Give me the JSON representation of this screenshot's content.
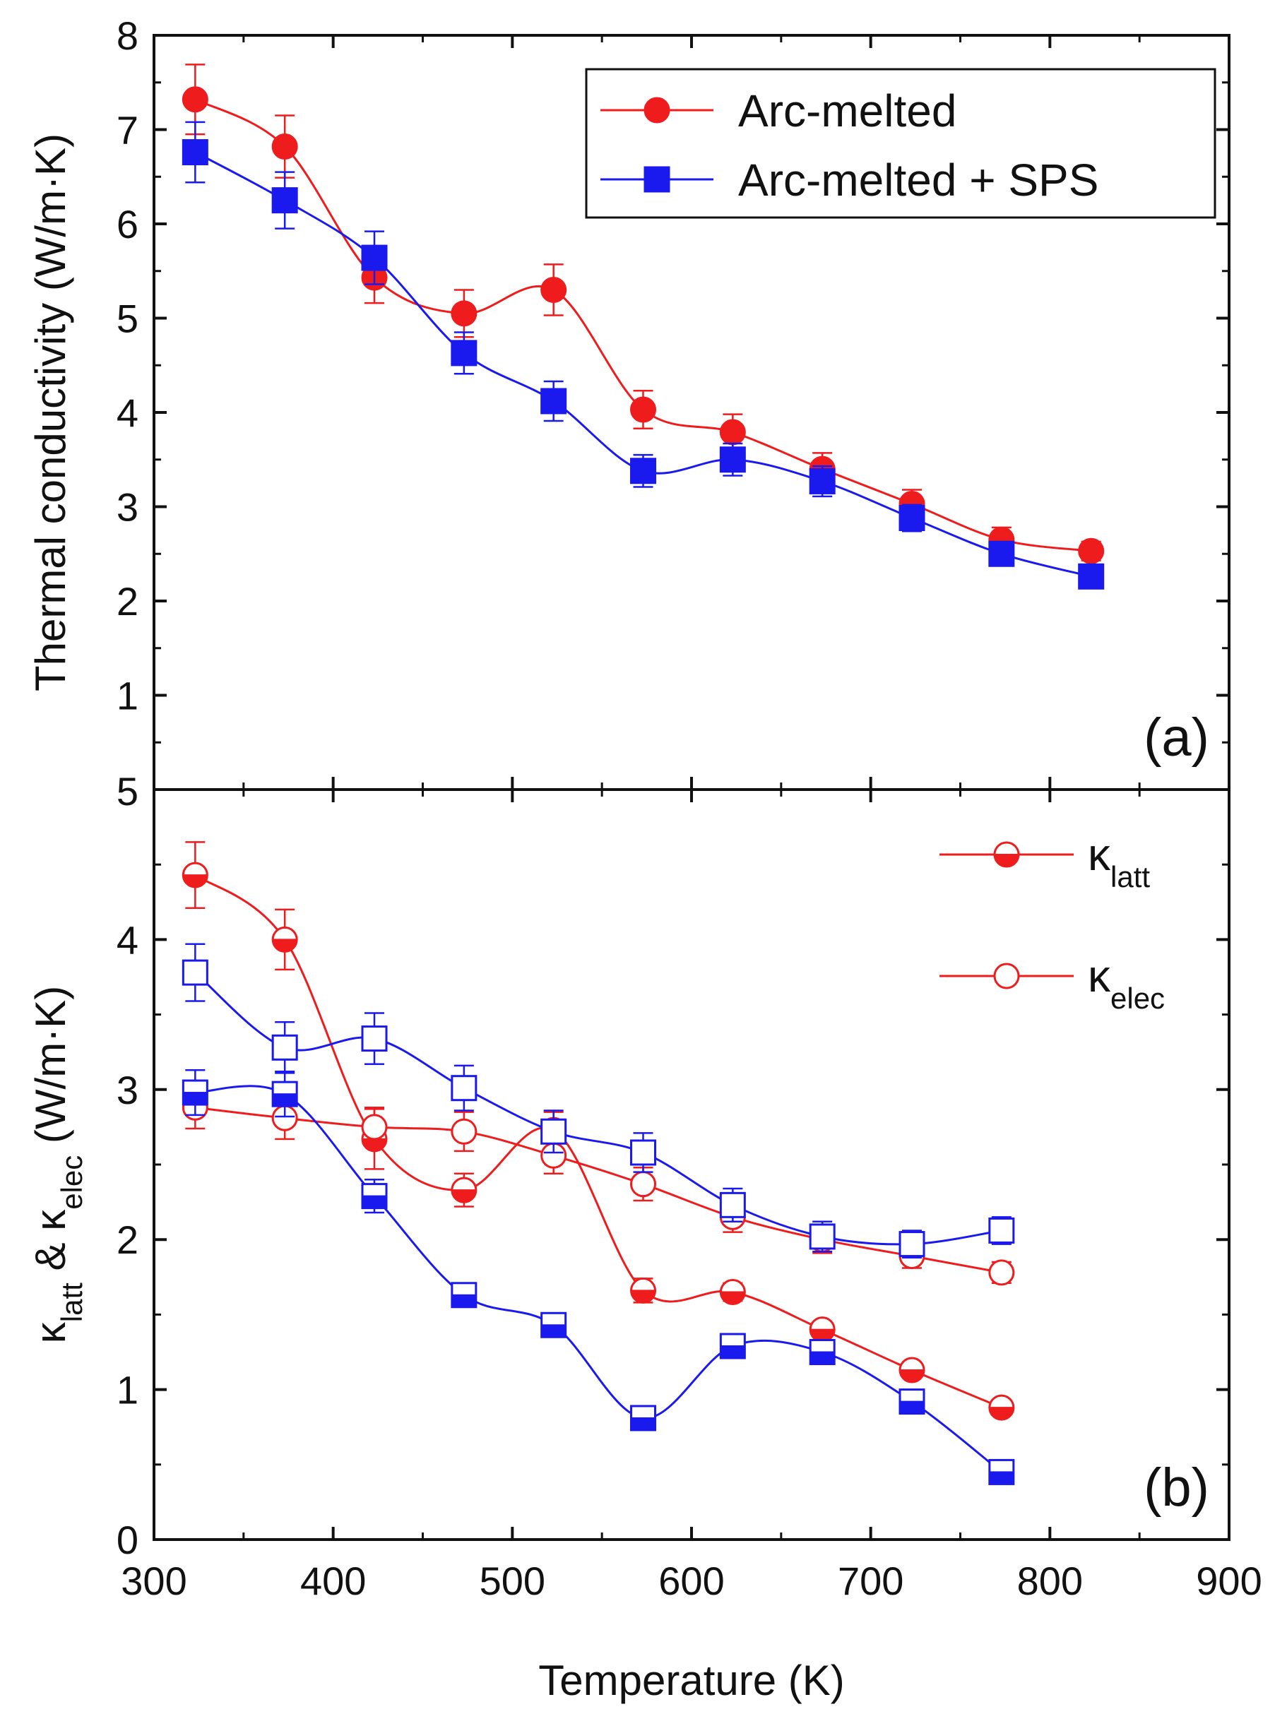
{
  "chart_data": [
    {
      "panel": "(a)",
      "type": "line",
      "ylabel": "Thermal conductivity (W/m·K)",
      "xlabel": "Temperature (K)",
      "xlim": [
        300,
        900
      ],
      "ylim": [
        0,
        8
      ],
      "xticks": [
        300,
        400,
        500,
        600,
        700,
        800,
        900
      ],
      "yticks": [
        1,
        2,
        3,
        4,
        5,
        6,
        7,
        8
      ],
      "ytick_labels": [
        "1",
        "2",
        "3",
        "4",
        "5",
        "6",
        "7",
        "8"
      ],
      "bottom_tick_label": "5",
      "legend_position": "top-right",
      "series": [
        {
          "name": "Arc-melted",
          "color": "#ee1c1c",
          "marker": "circle-filled",
          "x": [
            323,
            373,
            423,
            473,
            523,
            573,
            623,
            673,
            723,
            773,
            823
          ],
          "y": [
            7.32,
            6.82,
            5.43,
            5.05,
            5.3,
            4.03,
            3.79,
            3.4,
            3.03,
            2.65,
            2.53
          ],
          "err": [
            0.37,
            0.33,
            0.27,
            0.25,
            0.27,
            0.2,
            0.19,
            0.17,
            0.15,
            0.13,
            0.1
          ]
        },
        {
          "name": "Arc-melted + SPS",
          "color": "#1a1aee",
          "marker": "square-filled",
          "x": [
            323,
            373,
            423,
            473,
            523,
            573,
            623,
            673,
            723,
            773,
            823
          ],
          "y": [
            6.76,
            6.25,
            5.64,
            4.63,
            4.12,
            3.38,
            3.5,
            3.27,
            2.88,
            2.5,
            2.26
          ],
          "err": [
            0.32,
            0.3,
            0.28,
            0.22,
            0.21,
            0.17,
            0.17,
            0.16,
            0.14,
            0.12,
            0.1
          ]
        }
      ]
    },
    {
      "panel": "(b)",
      "type": "line",
      "ylabel_parts": [
        "κ",
        "latt",
        " & κ",
        "elec",
        " (W/m·K)"
      ],
      "xlabel": "Temperature (K)",
      "xlim": [
        300,
        900
      ],
      "ylim": [
        0,
        5
      ],
      "xticks": [
        300,
        400,
        500,
        600,
        700,
        800,
        900
      ],
      "xtick_labels": [
        "300",
        "400",
        "500",
        "600",
        "700",
        "800",
        "900"
      ],
      "yticks": [
        0,
        1,
        2,
        3,
        4
      ],
      "ytick_labels": [
        "0",
        "1",
        "2",
        "3",
        "4"
      ],
      "legend_position": "top-right",
      "legend": [
        {
          "symbol": "κ",
          "subscript": "latt",
          "marker": "half-filled-circle",
          "color": "#ee1c1c"
        },
        {
          "symbol": "κ",
          "subscript": "elec",
          "marker": "open-circle",
          "color": "#ee1c1c"
        }
      ],
      "series": [
        {
          "name": "Arc-melted κlatt",
          "color": "#ee1c1c",
          "marker": "circle-half",
          "x": [
            323,
            373,
            423,
            473,
            523,
            573,
            623,
            673,
            723,
            773
          ],
          "y": [
            4.43,
            4.0,
            2.67,
            2.33,
            2.73,
            1.66,
            1.65,
            1.4,
            1.13,
            0.88
          ],
          "err": [
            0.22,
            0.2,
            0.2,
            0.11,
            0.12,
            0.08,
            0.06,
            0.05,
            0.04,
            0.03
          ]
        },
        {
          "name": "Arc-melted κelec",
          "color": "#ee1c1c",
          "marker": "circle-open",
          "x": [
            323,
            373,
            423,
            473,
            523,
            573,
            623,
            673,
            723,
            773
          ],
          "y": [
            2.88,
            2.81,
            2.75,
            2.72,
            2.56,
            2.37,
            2.15,
            2.0,
            1.89,
            1.78
          ],
          "err": [
            0.14,
            0.14,
            0.13,
            0.13,
            0.12,
            0.11,
            0.1,
            0.09,
            0.08,
            0.07
          ]
        },
        {
          "name": "Arc-melted + SPS κlatt",
          "color": "#1a1aee",
          "marker": "square-half",
          "x": [
            323,
            373,
            423,
            473,
            523,
            573,
            623,
            673,
            723,
            773
          ],
          "y": [
            2.98,
            2.97,
            2.29,
            1.63,
            1.43,
            0.81,
            1.29,
            1.25,
            0.92,
            0.45
          ],
          "err": [
            0.15,
            0.15,
            0.11,
            0.06,
            0.05,
            0.03,
            0.04,
            0.04,
            0.03,
            0.02
          ]
        },
        {
          "name": "Arc-melted + SPS κelec",
          "color": "#1a1aee",
          "marker": "square-open",
          "x": [
            323,
            373,
            423,
            473,
            523,
            573,
            623,
            673,
            723,
            773
          ],
          "y": [
            3.78,
            3.28,
            3.34,
            3.01,
            2.72,
            2.58,
            2.23,
            2.02,
            1.97,
            2.06
          ],
          "err": [
            0.19,
            0.17,
            0.17,
            0.15,
            0.14,
            0.13,
            0.11,
            0.1,
            0.09,
            0.09
          ]
        }
      ]
    }
  ]
}
